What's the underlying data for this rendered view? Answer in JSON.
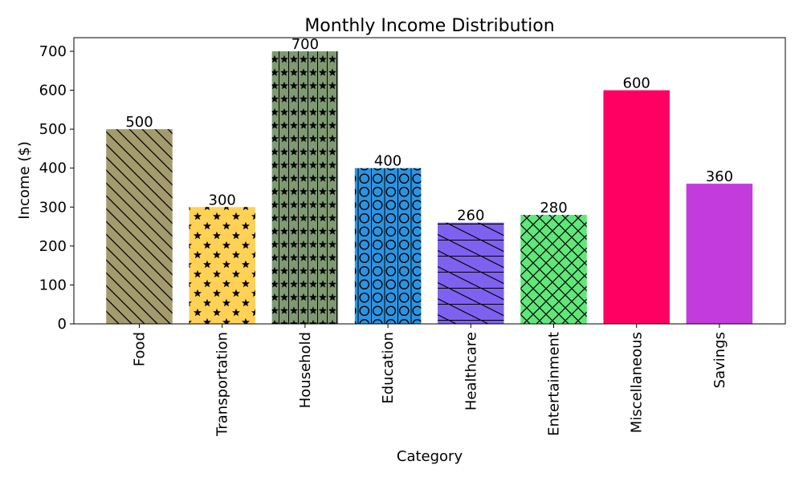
{
  "chart_data": {
    "type": "bar",
    "title": "Monthly Income Distribution",
    "xlabel": "Category",
    "ylabel": "Income ($)",
    "ylim": [
      0,
      735
    ],
    "yticks": [
      0,
      100,
      200,
      300,
      400,
      500,
      600,
      700
    ],
    "grid": false,
    "categories": [
      "Food",
      "Transportation",
      "Household",
      "Education",
      "Healthcare",
      "Entertainment",
      "Miscellaneous",
      "Savings"
    ],
    "values": [
      500,
      300,
      700,
      400,
      260,
      280,
      600,
      360
    ],
    "data_labels": [
      "500",
      "300",
      "700",
      "400",
      "260",
      "280",
      "600",
      "360"
    ],
    "colors": [
      "#a39b6d",
      "#ffd155",
      "#7f9a73",
      "#2b94e2",
      "#7f61f0",
      "#5fe77a",
      "#ff0062",
      "#c33bdd"
    ],
    "hatches": [
      "diagonal-back",
      "stars",
      "stars-dense",
      "circles",
      "diagonal-sparse",
      "crosshatch",
      "none",
      "none"
    ]
  }
}
